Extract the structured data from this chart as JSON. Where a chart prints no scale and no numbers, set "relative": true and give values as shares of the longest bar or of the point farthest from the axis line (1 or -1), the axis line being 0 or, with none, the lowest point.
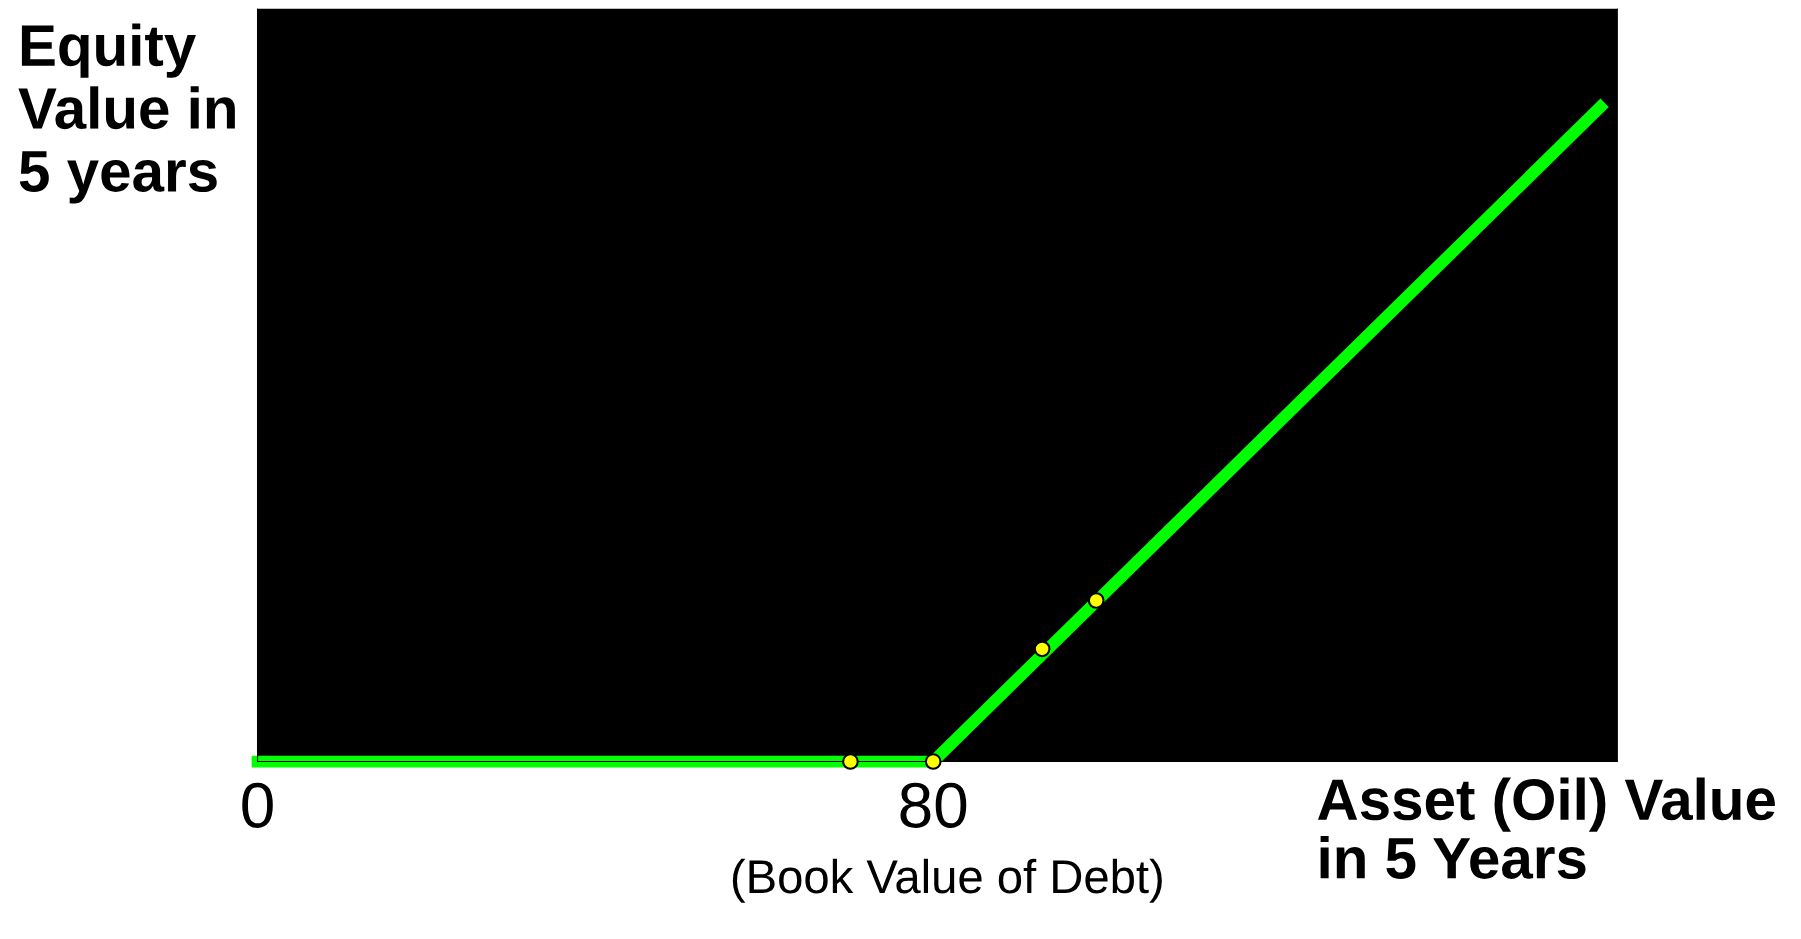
{
  "chart_data": {
    "type": "line",
    "relative": true,
    "ylabel": "Equity\nValue in\n5 years",
    "xlabel": "Asset (Oil) Value\nin 5 Years",
    "annotations": [
      "(Book Value of Debt)"
    ],
    "xlim": [
      0,
      161
    ],
    "xticks": [
      0,
      80
    ],
    "tick_labels": "x",
    "grid": false,
    "series": [
      {
        "color": "#00ff00",
        "marker": "none",
        "line_style": "solid",
        "x": [
          0,
          80,
          159
        ],
        "values": [
          0,
          0,
          1
        ]
      },
      {
        "type": "scatter",
        "color": "#ffff00",
        "marker": "circle",
        "x": [
          70.2,
          80,
          92.9,
          99.3
        ],
        "values": [
          0,
          0,
          0.172,
          0.246
        ]
      }
    ]
  }
}
